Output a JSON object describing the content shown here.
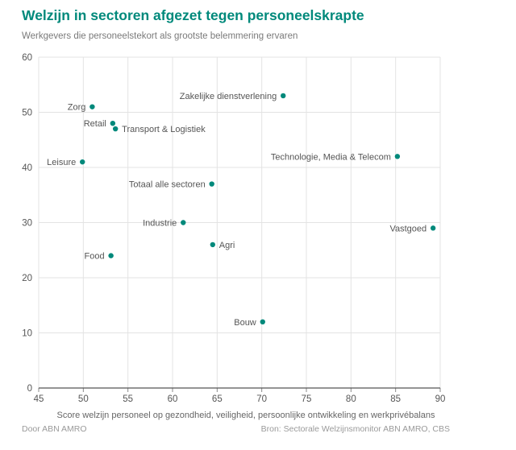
{
  "header": {
    "title": "Welzijn in sectoren afgezet tegen personeelskrapte",
    "subtitle": "Werkgevers die personeelstekort als grootste belemmering ervaren"
  },
  "footer": {
    "author": "Door ABN AMRO",
    "source": "Bron: Sectorale Welzijnsmonitor ABN AMRO, CBS"
  },
  "colors": {
    "point": "#00897B",
    "title": "#00897B",
    "grid": "#e3e3e3",
    "axis": "#555555"
  },
  "chart_data": {
    "type": "scatter",
    "title": "Welzijn in sectoren afgezet tegen personeelskrapte",
    "subtitle": "Werkgevers die personeelstekort als grootste belemmering ervaren",
    "xlabel": "Score welzijn personeel op gezondheid, veiligheid, persoonlijke ontwikkeling en werkprivébalans",
    "ylabel": "",
    "xlim": [
      45,
      90
    ],
    "ylim": [
      0,
      60
    ],
    "xticks": [
      45,
      50,
      55,
      60,
      65,
      70,
      75,
      80,
      85,
      90
    ],
    "yticks": [
      0,
      10,
      20,
      30,
      40,
      50,
      60
    ],
    "grid": true,
    "points": [
      {
        "label": "Zakelijke dienstverlening",
        "x": 72.4,
        "y": 53,
        "side": "left"
      },
      {
        "label": "Zorg",
        "x": 51.0,
        "y": 51,
        "side": "left"
      },
      {
        "label": "Retail",
        "x": 53.3,
        "y": 48,
        "side": "left"
      },
      {
        "label": "Transport & Logistiek",
        "x": 53.6,
        "y": 47,
        "side": "right"
      },
      {
        "label": "Technologie, Media & Telecom",
        "x": 85.2,
        "y": 42,
        "side": "left"
      },
      {
        "label": "Leisure",
        "x": 49.9,
        "y": 41,
        "side": "left"
      },
      {
        "label": "Totaal alle sectoren",
        "x": 64.4,
        "y": 37,
        "side": "left"
      },
      {
        "label": "Industrie",
        "x": 61.2,
        "y": 30,
        "side": "left"
      },
      {
        "label": "Vastgoed",
        "x": 89.2,
        "y": 29,
        "side": "left"
      },
      {
        "label": "Agri",
        "x": 64.5,
        "y": 26,
        "side": "right"
      },
      {
        "label": "Food",
        "x": 53.1,
        "y": 24,
        "side": "left"
      },
      {
        "label": "Bouw",
        "x": 70.1,
        "y": 12,
        "side": "left"
      }
    ]
  }
}
